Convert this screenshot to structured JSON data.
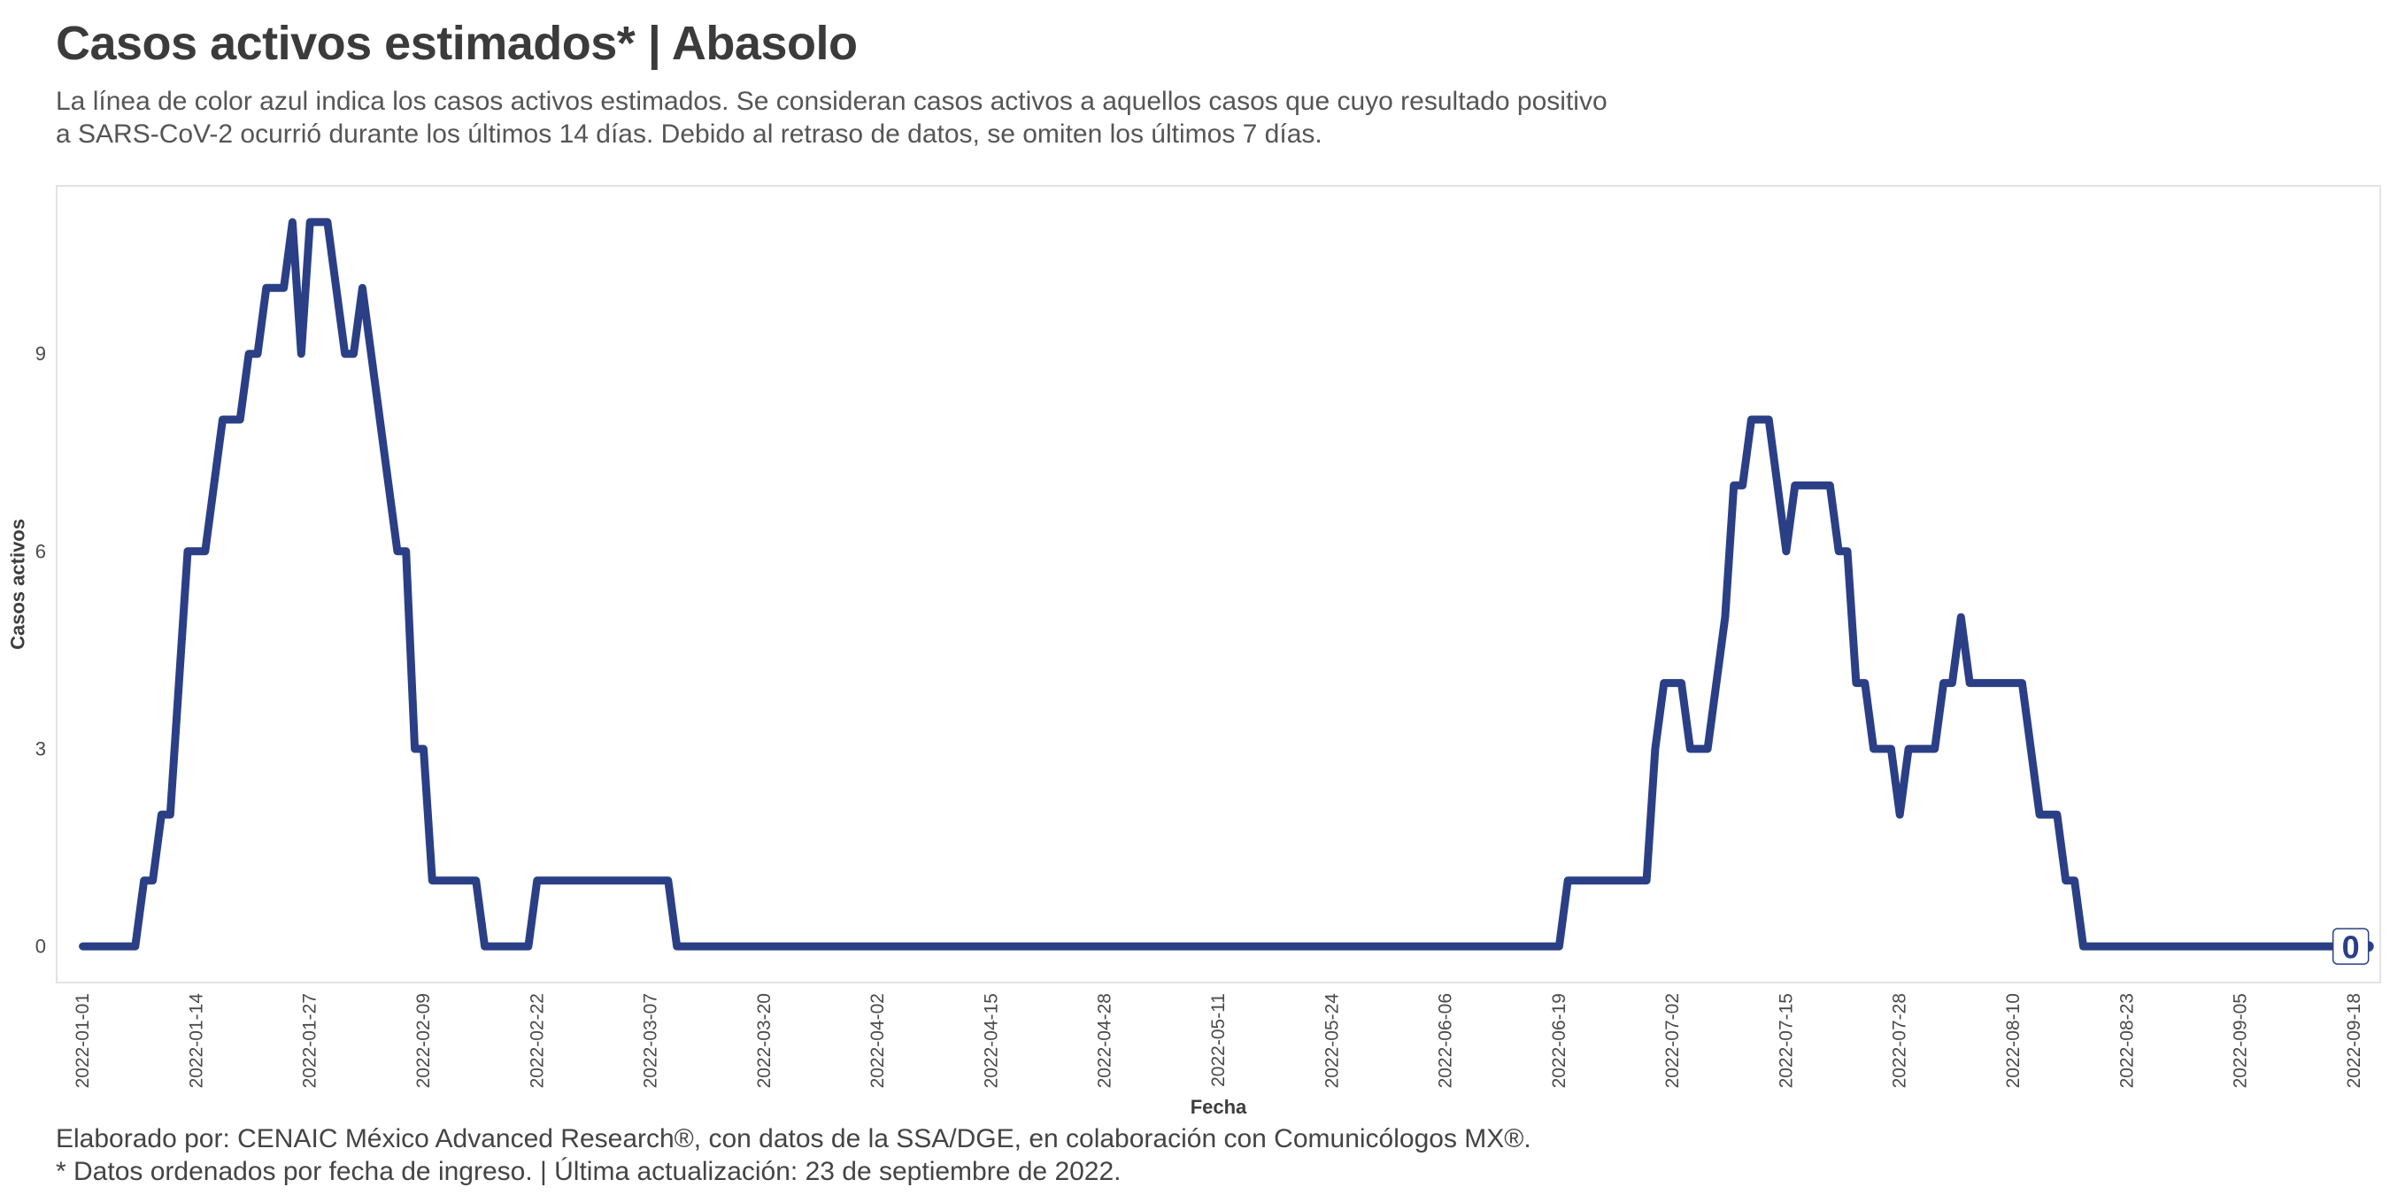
{
  "header": {
    "title": "Casos activos estimados* | Abasolo",
    "subtitle_line1": "La línea de color azul indica los casos activos estimados. Se consideran casos activos a aquellos casos que cuyo resultado positivo",
    "subtitle_line2": "a SARS-CoV-2 ocurrió durante los últimos 14 días. Debido al retraso de datos, se omiten los últimos 7 días."
  },
  "footer": {
    "line1": "Elaborado por: CENAIC México Advanced Research®, con datos de la SSA/DGE, en colaboración con Comunicólogos MX®.",
    "line2": "* Datos ordenados por fecha de ingreso. | Última actualización: 23 de septiembre de 2022."
  },
  "colors": {
    "line": "#2a3f85",
    "panel_border": "#e3e3e3",
    "label_box_border": "#2a3f85"
  },
  "chart_data": {
    "type": "line",
    "xlabel": "Fecha",
    "ylabel": "Casos activos",
    "x_range": [
      "2021-12-29",
      "2022-09-21"
    ],
    "y_range": [
      -0.55,
      11.55
    ],
    "y_ticks": [
      0,
      3,
      6,
      9
    ],
    "x_ticks": [
      "2022-01-01",
      "2022-01-14",
      "2022-01-27",
      "2022-02-09",
      "2022-02-22",
      "2022-03-07",
      "2022-03-20",
      "2022-04-02",
      "2022-04-15",
      "2022-04-28",
      "2022-05-11",
      "2022-05-24",
      "2022-06-06",
      "2022-06-19",
      "2022-07-02",
      "2022-07-15",
      "2022-07-28",
      "2022-08-10",
      "2022-08-23",
      "2022-09-05",
      "2022-09-18"
    ],
    "grid": false,
    "end_label": "0",
    "series": [
      {
        "points": [
          [
            "2022-01-01",
            0
          ],
          [
            "2022-01-07",
            0
          ],
          [
            "2022-01-08",
            1
          ],
          [
            "2022-01-09",
            1
          ],
          [
            "2022-01-10",
            2
          ],
          [
            "2022-01-11",
            2
          ],
          [
            "2022-01-13",
            6
          ],
          [
            "2022-01-15",
            6
          ],
          [
            "2022-01-17",
            8
          ],
          [
            "2022-01-19",
            8
          ],
          [
            "2022-01-20",
            9
          ],
          [
            "2022-01-21",
            9
          ],
          [
            "2022-01-22",
            10
          ],
          [
            "2022-01-24",
            10
          ],
          [
            "2022-01-25",
            11
          ],
          [
            "2022-01-26",
            9
          ],
          [
            "2022-01-27",
            11
          ],
          [
            "2022-01-29",
            11
          ],
          [
            "2022-01-31",
            9
          ],
          [
            "2022-02-01",
            9
          ],
          [
            "2022-02-02",
            10
          ],
          [
            "2022-02-06",
            6
          ],
          [
            "2022-02-07",
            6
          ],
          [
            "2022-02-08",
            3
          ],
          [
            "2022-02-09",
            3
          ],
          [
            "2022-02-10",
            1
          ],
          [
            "2022-02-15",
            1
          ],
          [
            "2022-02-16",
            0
          ],
          [
            "2022-02-21",
            0
          ],
          [
            "2022-02-22",
            1
          ],
          [
            "2022-03-09",
            1
          ],
          [
            "2022-03-10",
            0
          ],
          [
            "2022-06-19",
            0
          ],
          [
            "2022-06-20",
            1
          ],
          [
            "2022-06-29",
            1
          ],
          [
            "2022-06-30",
            3
          ],
          [
            "2022-07-01",
            4
          ],
          [
            "2022-07-03",
            4
          ],
          [
            "2022-07-04",
            3
          ],
          [
            "2022-07-06",
            3
          ],
          [
            "2022-07-08",
            5
          ],
          [
            "2022-07-09",
            7
          ],
          [
            "2022-07-10",
            7
          ],
          [
            "2022-07-11",
            8
          ],
          [
            "2022-07-13",
            8
          ],
          [
            "2022-07-15",
            6
          ],
          [
            "2022-07-16",
            7
          ],
          [
            "2022-07-20",
            7
          ],
          [
            "2022-07-21",
            6
          ],
          [
            "2022-07-22",
            6
          ],
          [
            "2022-07-23",
            4
          ],
          [
            "2022-07-24",
            4
          ],
          [
            "2022-07-25",
            3
          ],
          [
            "2022-07-27",
            3
          ],
          [
            "2022-07-28",
            2
          ],
          [
            "2022-07-29",
            3
          ],
          [
            "2022-08-01",
            3
          ],
          [
            "2022-08-02",
            4
          ],
          [
            "2022-08-03",
            4
          ],
          [
            "2022-08-04",
            5
          ],
          [
            "2022-08-05",
            4
          ],
          [
            "2022-08-11",
            4
          ],
          [
            "2022-08-13",
            2
          ],
          [
            "2022-08-15",
            2
          ],
          [
            "2022-08-16",
            1
          ],
          [
            "2022-08-17",
            1
          ],
          [
            "2022-08-18",
            0
          ],
          [
            "2022-09-16",
            0
          ]
        ]
      }
    ]
  }
}
